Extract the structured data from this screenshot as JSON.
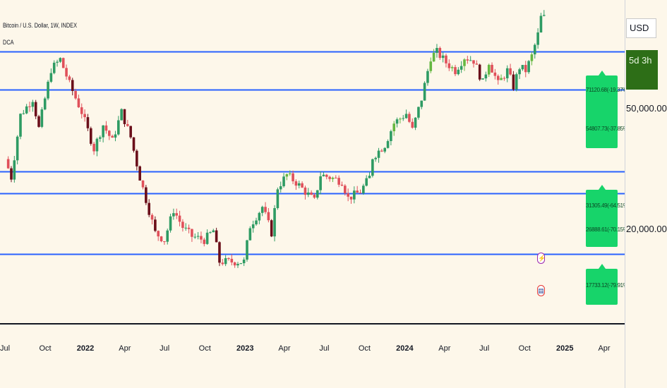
{
  "header": {
    "title": "Bitcoin / U.S. Dollar, 1W, INDEX",
    "indicator": "DCA"
  },
  "price_scale": {
    "currency": "USD",
    "countdown": "5d 3h",
    "labels": [
      "50,000.00",
      "20,000.00"
    ]
  },
  "time_axis": {
    "labels": [
      "Jul",
      "Oct",
      "2022",
      "Apr",
      "Jul",
      "Oct",
      "2023",
      "Apr",
      "Jul",
      "Oct",
      "2024",
      "Apr",
      "Jul",
      "Oct",
      "2025",
      "Apr"
    ],
    "year_labels": [
      "2022",
      "2023",
      "2024",
      "2025"
    ]
  },
  "dca_boxes": [
    {
      "lines": [
        "71120.68(-19.37%)",
        "54807.73(-37.85%)"
      ]
    },
    {
      "lines": [
        "31305.49(-64.51%)",
        "26888.61(-70.15%)"
      ]
    },
    {
      "lines": [
        "17733.12(-79.91%)"
      ]
    }
  ],
  "icons": {
    "lightning": "lightning-icon",
    "flag": "us-flag-icon"
  },
  "colors": {
    "background": "#fdf7ea",
    "level_line": "#2962ff",
    "up_candle": "#2e9b63",
    "up_candle_highlight": "#65b741",
    "down_candle": "#e0505a",
    "down_candle_dark": "#6b0f1a",
    "dca_box": "#17d46a"
  },
  "chart_data": {
    "type": "candlestick",
    "title": "Bitcoin / U.S. Dollar, 1W, INDEX",
    "interval": "1W",
    "y_scale": "log",
    "y_ticks": [
      50000,
      20000
    ],
    "x_ticks": [
      "Jul",
      "Oct",
      "2022",
      "Apr",
      "Jul",
      "Oct",
      "2023",
      "Apr",
      "Jul",
      "Oct",
      "2024",
      "Apr",
      "Jul",
      "Oct",
      "2025",
      "Apr"
    ],
    "date_range": [
      "2021-07",
      "2025-04"
    ],
    "levels": [
      71120.68,
      54807.73,
      31305.49,
      26888.61,
      17733.12
    ],
    "level_changes": [
      "-19.37%",
      "-37.85%",
      "-64.51%",
      "-70.15%",
      "-79.91%"
    ],
    "path": [
      [
        "2021-07-05",
        34000
      ],
      [
        "2021-07-19",
        30000
      ],
      [
        "2021-08-09",
        46000
      ],
      [
        "2021-09-06",
        51500
      ],
      [
        "2021-09-20",
        42000
      ],
      [
        "2021-10-18",
        63000
      ],
      [
        "2021-11-08",
        67500
      ],
      [
        "2021-11-29",
        57000
      ],
      [
        "2021-12-27",
        47000
      ],
      [
        "2022-01-24",
        36500
      ],
      [
        "2022-02-14",
        43000
      ],
      [
        "2022-03-07",
        38500
      ],
      [
        "2022-03-28",
        47000
      ],
      [
        "2022-04-18",
        39500
      ],
      [
        "2022-05-09",
        30000
      ],
      [
        "2022-06-13",
        20500
      ],
      [
        "2022-07-04",
        19500
      ],
      [
        "2022-07-25",
        24000
      ],
      [
        "2022-08-15",
        21300
      ],
      [
        "2022-09-05",
        20000
      ],
      [
        "2022-10-03",
        19500
      ],
      [
        "2022-10-24",
        20800
      ],
      [
        "2022-11-07",
        16800
      ],
      [
        "2022-12-12",
        16800
      ],
      [
        "2023-01-02",
        16800
      ],
      [
        "2023-01-16",
        21500
      ],
      [
        "2023-02-13",
        24500
      ],
      [
        "2023-03-06",
        20500
      ],
      [
        "2023-03-20",
        28000
      ],
      [
        "2023-04-10",
        30500
      ],
      [
        "2023-05-01",
        29000
      ],
      [
        "2023-06-12",
        25500
      ],
      [
        "2023-06-26",
        30500
      ],
      [
        "2023-07-17",
        30000
      ],
      [
        "2023-08-14",
        29200
      ],
      [
        "2023-08-28",
        26000
      ],
      [
        "2023-09-25",
        27200
      ],
      [
        "2023-10-16",
        30000
      ],
      [
        "2023-10-23",
        34500
      ],
      [
        "2023-11-20",
        37500
      ],
      [
        "2023-12-11",
        43500
      ],
      [
        "2024-01-08",
        46500
      ],
      [
        "2024-01-22",
        41500
      ],
      [
        "2024-02-12",
        51500
      ],
      [
        "2024-03-04",
        68500
      ],
      [
        "2024-03-18",
        71000
      ],
      [
        "2024-04-08",
        66000
      ],
      [
        "2024-04-29",
        62500
      ],
      [
        "2024-05-20",
        68500
      ],
      [
        "2024-06-10",
        67000
      ],
      [
        "2024-07-01",
        57500
      ],
      [
        "2024-07-15",
        66500
      ],
      [
        "2024-08-05",
        57000
      ],
      [
        "2024-08-26",
        62500
      ],
      [
        "2024-09-09",
        56000
      ],
      [
        "2024-09-23",
        64000
      ],
      [
        "2024-10-07",
        62500
      ],
      [
        "2024-10-21",
        69000
      ],
      [
        "2024-11-04",
        80000
      ],
      [
        "2024-11-11",
        90000
      ]
    ]
  }
}
